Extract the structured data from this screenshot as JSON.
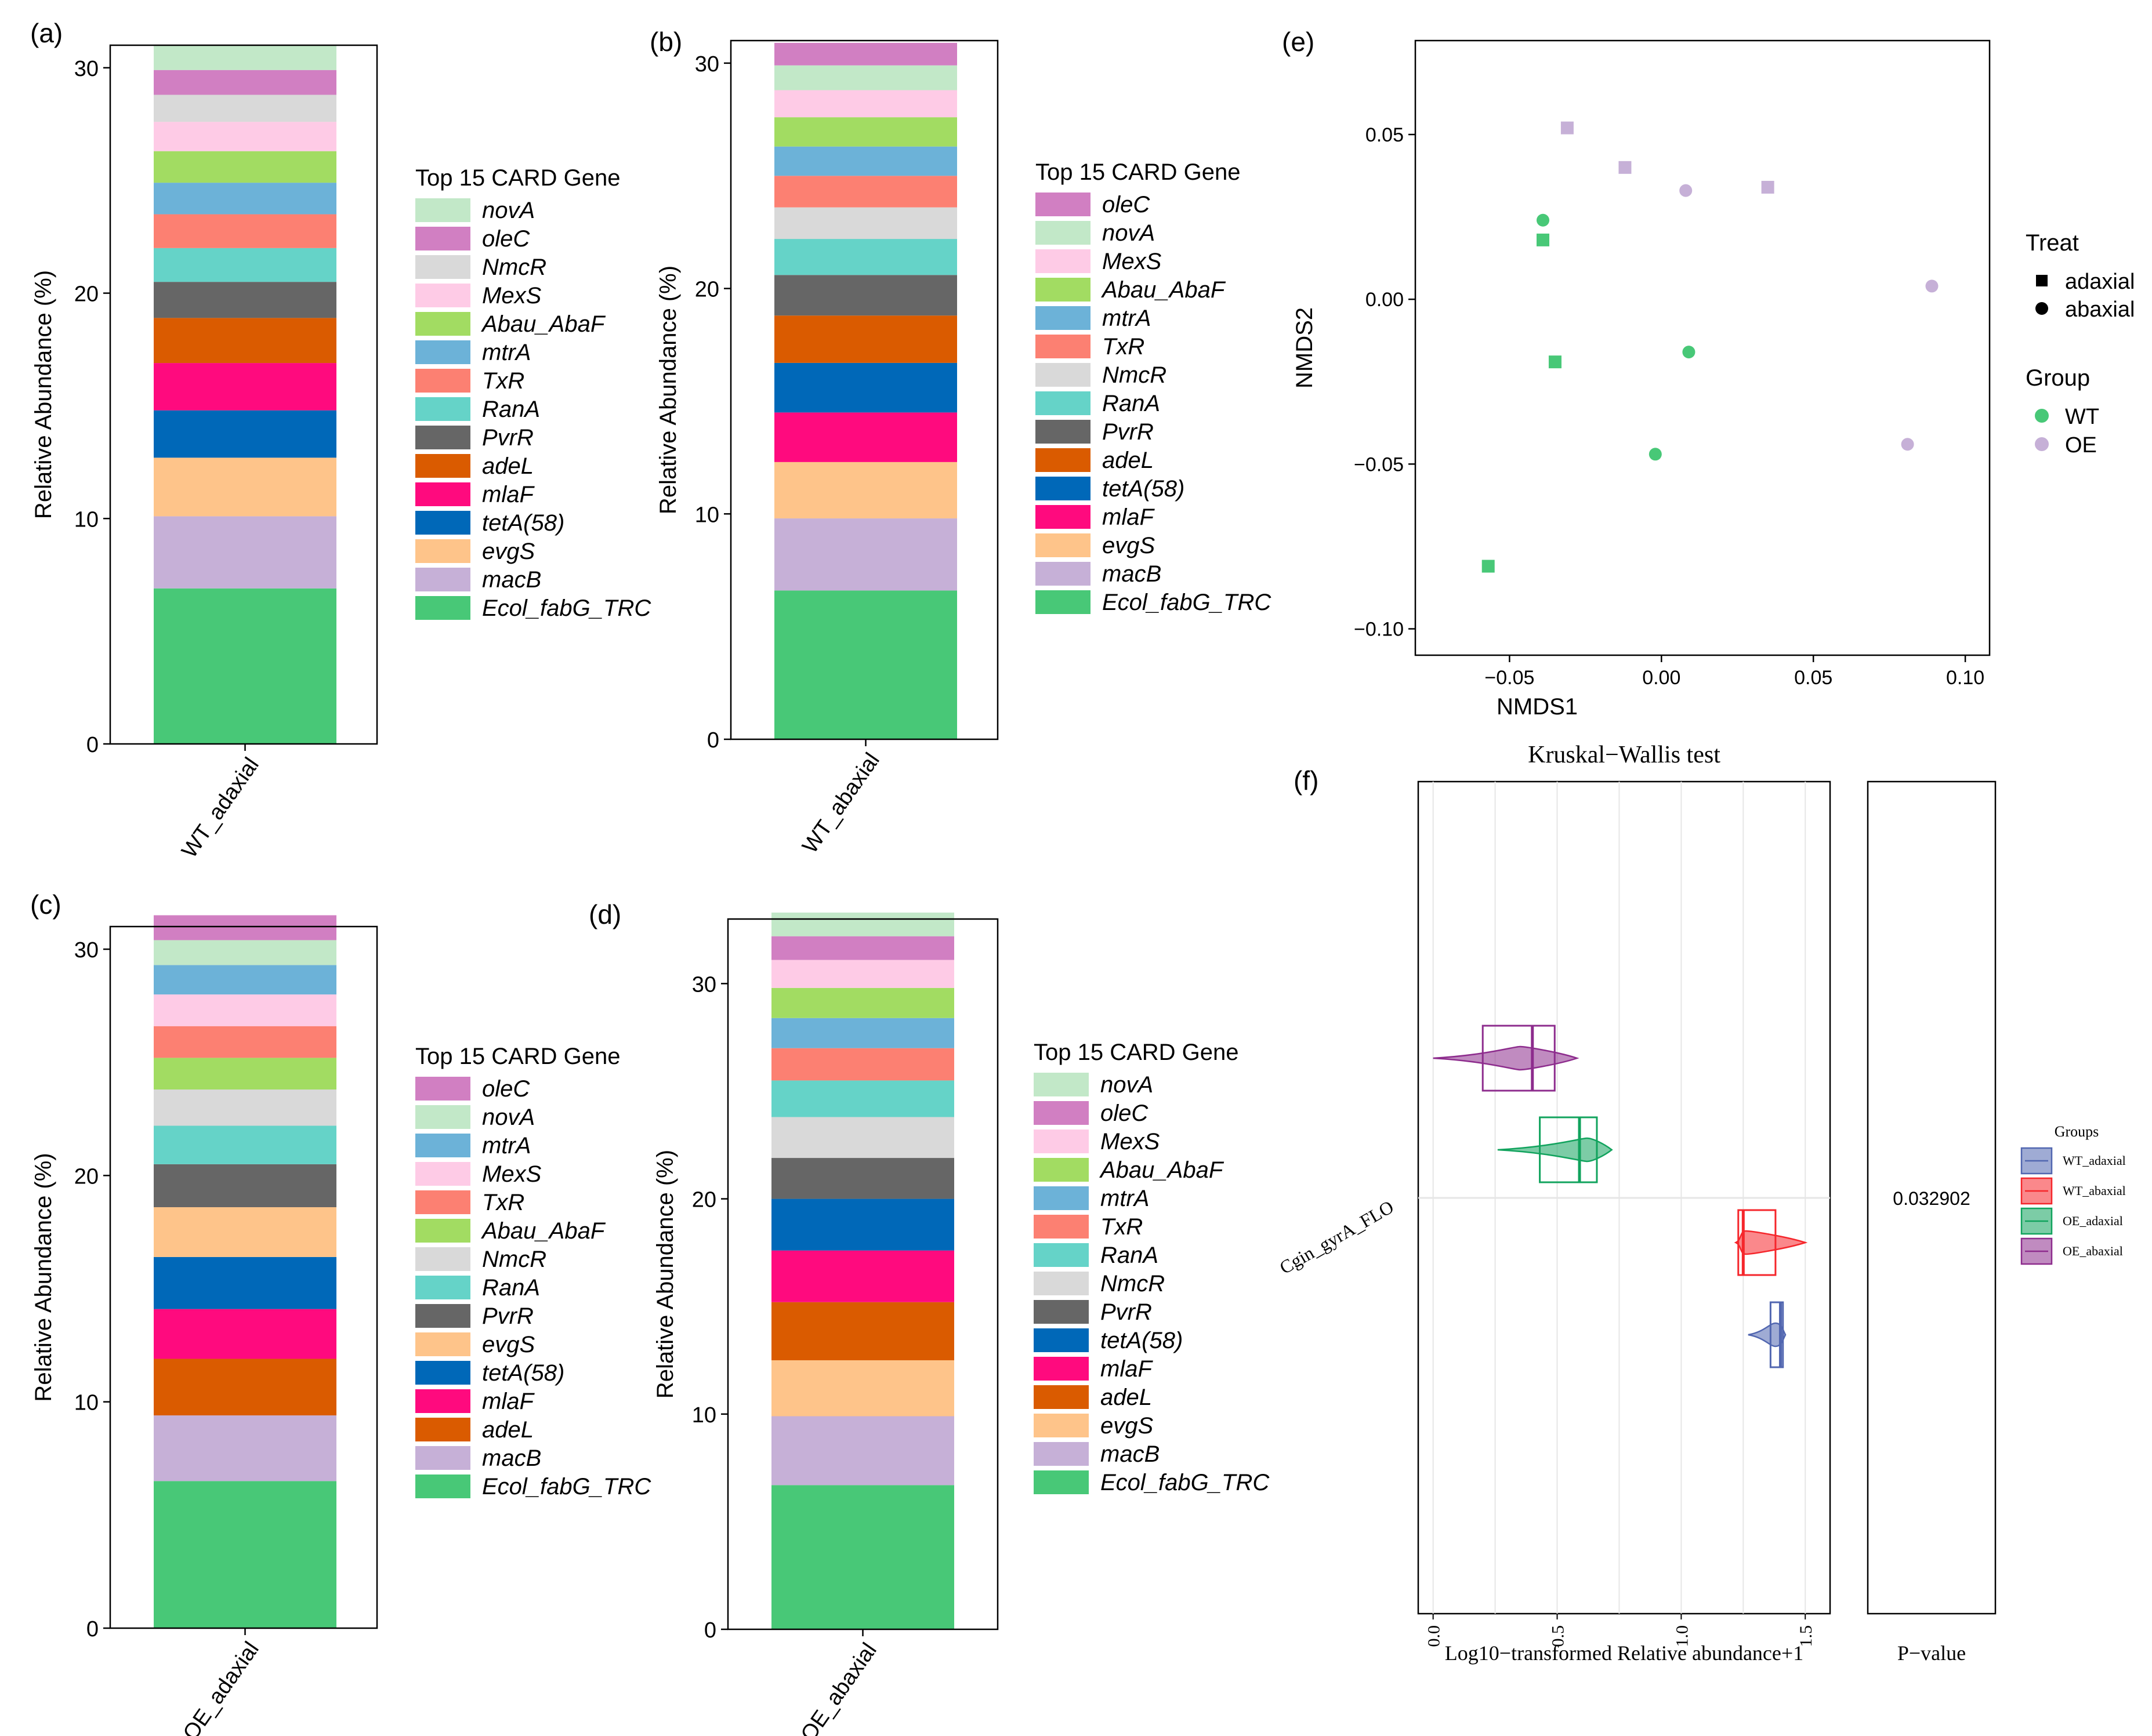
{
  "figure": {
    "colors": {
      "novA": "#c2e8c8",
      "oleC": "#d17fc2",
      "NmcR": "#d9d9d9",
      "MexS": "#fecbe6",
      "Abau_AbaF": "#a2dc62",
      "mtrA": "#6cb2d8",
      "TxR": "#fc8072",
      "RanA": "#65d3c8",
      "PvrR": "#666666",
      "adeL": "#da5b00",
      "mlaF": "#ff0a7e",
      "tetA(58)": "#0068b8",
      "evgS": "#fec48a",
      "macB": "#c6b0d7",
      "Ecol_fabG_TRC": "#48c877",
      "WT": "#48c877",
      "OE": "#c6b0d7",
      "WT_adaxial": "#5166b0",
      "WT_abaxial": "#f5262b",
      "OE_adaxial": "#11a35d",
      "OE_abaxial": "#8d2c8d"
    }
  },
  "chart_data": [
    {
      "panel": "(a)",
      "type": "bar",
      "stacked": true,
      "category": "WT_adaxial",
      "ylabel": "Relative Abundance (%)",
      "ylim": [
        0,
        31
      ],
      "yticks": [
        0,
        10,
        20,
        30
      ],
      "legend_title": "Top 15 CARD Gene",
      "legend": [
        "novA",
        "oleC",
        "NmcR",
        "MexS",
        "Abau_AbaF",
        "mtrA",
        "TxR",
        "RanA",
        "PvrR",
        "adeL",
        "mlaF",
        "tetA(58)",
        "evgS",
        "macB",
        "Ecol_fabG_TRC"
      ],
      "series": [
        {
          "name": "Ecol_fabG_TRC",
          "value": 6.9
        },
        {
          "name": "macB",
          "value": 3.2
        },
        {
          "name": "evgS",
          "value": 2.6
        },
        {
          "name": "tetA(58)",
          "value": 2.1
        },
        {
          "name": "mlaF",
          "value": 2.1
        },
        {
          "name": "adeL",
          "value": 2.0
        },
        {
          "name": "PvrR",
          "value": 1.6
        },
        {
          "name": "RanA",
          "value": 1.5
        },
        {
          "name": "TxR",
          "value": 1.5
        },
        {
          "name": "mtrA",
          "value": 1.4
        },
        {
          "name": "Abau_AbaF",
          "value": 1.4
        },
        {
          "name": "MexS",
          "value": 1.3
        },
        {
          "name": "NmcR",
          "value": 1.2
        },
        {
          "name": "oleC",
          "value": 1.1
        },
        {
          "name": "novA",
          "value": 1.1
        }
      ]
    },
    {
      "panel": "(b)",
      "type": "bar",
      "stacked": true,
      "category": "WT_abaxial",
      "ylabel": "Relative Abundance (%)",
      "ylim": [
        0,
        31
      ],
      "yticks": [
        0,
        10,
        20,
        30
      ],
      "legend_title": "Top 15 CARD Gene",
      "legend": [
        "oleC",
        "novA",
        "MexS",
        "Abau_AbaF",
        "mtrA",
        "TxR",
        "NmcR",
        "RanA",
        "PvrR",
        "adeL",
        "tetA(58)",
        "mlaF",
        "evgS",
        "macB",
        "Ecol_fabG_TRC"
      ],
      "series": [
        {
          "name": "Ecol_fabG_TRC",
          "value": 6.6
        },
        {
          "name": "macB",
          "value": 3.2
        },
        {
          "name": "evgS",
          "value": 2.5
        },
        {
          "name": "mlaF",
          "value": 2.2
        },
        {
          "name": "tetA(58)",
          "value": 2.2
        },
        {
          "name": "adeL",
          "value": 2.1
        },
        {
          "name": "PvrR",
          "value": 1.8
        },
        {
          "name": "RanA",
          "value": 1.6
        },
        {
          "name": "NmcR",
          "value": 1.4
        },
        {
          "name": "TxR",
          "value": 1.4
        },
        {
          "name": "mtrA",
          "value": 1.3
        },
        {
          "name": "Abau_AbaF",
          "value": 1.3
        },
        {
          "name": "MexS",
          "value": 1.2
        },
        {
          "name": "novA",
          "value": 1.1
        },
        {
          "name": "oleC",
          "value": 1.0
        }
      ]
    },
    {
      "panel": "(c)",
      "type": "bar",
      "stacked": true,
      "category": "OE_adaxial",
      "ylabel": "Relative Abundance (%)",
      "ylim": [
        0,
        31
      ],
      "yticks": [
        0,
        10,
        20,
        30
      ],
      "legend_title": "Top 15 CARD Gene",
      "legend": [
        "oleC",
        "novA",
        "mtrA",
        "MexS",
        "TxR",
        "Abau_AbaF",
        "NmcR",
        "RanA",
        "PvrR",
        "evgS",
        "tetA(58)",
        "mlaF",
        "adeL",
        "macB",
        "Ecol_fabG_TRC"
      ],
      "series": [
        {
          "name": "Ecol_fabG_TRC",
          "value": 6.5
        },
        {
          "name": "macB",
          "value": 2.9
        },
        {
          "name": "adeL",
          "value": 2.5
        },
        {
          "name": "mlaF",
          "value": 2.2
        },
        {
          "name": "tetA(58)",
          "value": 2.3
        },
        {
          "name": "evgS",
          "value": 2.2
        },
        {
          "name": "PvrR",
          "value": 1.9
        },
        {
          "name": "RanA",
          "value": 1.7
        },
        {
          "name": "NmcR",
          "value": 1.6
        },
        {
          "name": "Abau_AbaF",
          "value": 1.4
        },
        {
          "name": "TxR",
          "value": 1.4
        },
        {
          "name": "MexS",
          "value": 1.4
        },
        {
          "name": "mtrA",
          "value": 1.3
        },
        {
          "name": "novA",
          "value": 1.1
        },
        {
          "name": "oleC",
          "value": 1.1
        }
      ]
    },
    {
      "panel": "(d)",
      "type": "bar",
      "stacked": true,
      "category": "OE_abaxial",
      "ylabel": "Relative Abundance (%)",
      "ylim": [
        0,
        33
      ],
      "yticks": [
        0,
        10,
        20,
        30
      ],
      "legend_title": "Top 15 CARD Gene",
      "legend": [
        "novA",
        "oleC",
        "MexS",
        "Abau_AbaF",
        "mtrA",
        "TxR",
        "RanA",
        "NmcR",
        "PvrR",
        "tetA(58)",
        "mlaF",
        "adeL",
        "evgS",
        "macB",
        "Ecol_fabG_TRC"
      ],
      "series": [
        {
          "name": "Ecol_fabG_TRC",
          "value": 6.7
        },
        {
          "name": "macB",
          "value": 3.2
        },
        {
          "name": "evgS",
          "value": 2.6
        },
        {
          "name": "adeL",
          "value": 2.7
        },
        {
          "name": "mlaF",
          "value": 2.4
        },
        {
          "name": "tetA(58)",
          "value": 2.4
        },
        {
          "name": "PvrR",
          "value": 1.9
        },
        {
          "name": "NmcR",
          "value": 1.9
        },
        {
          "name": "RanA",
          "value": 1.7
        },
        {
          "name": "TxR",
          "value": 1.5
        },
        {
          "name": "mtrA",
          "value": 1.4
        },
        {
          "name": "Abau_AbaF",
          "value": 1.4
        },
        {
          "name": "MexS",
          "value": 1.3
        },
        {
          "name": "oleC",
          "value": 1.1
        },
        {
          "name": "novA",
          "value": 1.1
        }
      ]
    },
    {
      "panel": "(e)",
      "type": "scatter",
      "xlabel": "NMDS1",
      "ylabel": "NMDS2",
      "xlim": [
        -0.081,
        0.108
      ],
      "ylim": [
        -0.108,
        0.0785
      ],
      "xticks": [
        -0.05,
        0.0,
        0.05,
        0.1
      ],
      "xtick_labels": [
        "−0.05",
        "0.00",
        "0.05",
        "0.10"
      ],
      "yticks": [
        -0.1,
        -0.05,
        0.0,
        0.05
      ],
      "ytick_labels": [
        "−0.10",
        "−0.05",
        "0.00",
        "0.05"
      ],
      "legend_treat_title": "Treat",
      "legend_treat": [
        "adaxial",
        "abaxial"
      ],
      "legend_group_title": "Group",
      "legend_group": [
        "WT",
        "OE"
      ],
      "points": [
        {
          "x": -0.031,
          "y": 0.052,
          "group": "OE",
          "treat": "adaxial"
        },
        {
          "x": -0.012,
          "y": 0.04,
          "group": "OE",
          "treat": "adaxial"
        },
        {
          "x": 0.035,
          "y": 0.034,
          "group": "OE",
          "treat": "adaxial"
        },
        {
          "x": 0.008,
          "y": 0.033,
          "group": "OE",
          "treat": "abaxial"
        },
        {
          "x": 0.089,
          "y": 0.004,
          "group": "OE",
          "treat": "abaxial"
        },
        {
          "x": 0.081,
          "y": -0.044,
          "group": "OE",
          "treat": "abaxial"
        },
        {
          "x": -0.039,
          "y": 0.024,
          "group": "WT",
          "treat": "abaxial"
        },
        {
          "x": -0.039,
          "y": 0.018,
          "group": "WT",
          "treat": "adaxial"
        },
        {
          "x": -0.035,
          "y": -0.019,
          "group": "WT",
          "treat": "adaxial"
        },
        {
          "x": 0.009,
          "y": -0.016,
          "group": "WT",
          "treat": "abaxial"
        },
        {
          "x": -0.002,
          "y": -0.047,
          "group": "WT",
          "treat": "abaxial"
        },
        {
          "x": -0.057,
          "y": -0.081,
          "group": "WT",
          "treat": "adaxial"
        }
      ]
    },
    {
      "panel": "(f)",
      "type": "box_violin",
      "title": "Kruskal−Wallis test",
      "gene": "Cgin_gyrA_FLO",
      "xlabel": "Log10−transformed Relative abundance+1",
      "xlim": [
        -0.06,
        1.6
      ],
      "xticks": [
        0.0,
        0.5,
        1.0,
        1.5
      ],
      "xtick_labels": [
        "0.0",
        "0.5",
        "1.0",
        "1.5"
      ],
      "pvalue_label": "P−value",
      "pvalue": "0.032902",
      "legend_title": "Groups",
      "legend": [
        "WT_adaxial",
        "WT_abaxial",
        "OE_adaxial",
        "OE_abaxial"
      ],
      "groups": [
        {
          "name": "OE_abaxial",
          "min": 0.0,
          "q1": 0.2,
          "median": 0.4,
          "q3": 0.49,
          "max": 0.58,
          "peak": 0.35
        },
        {
          "name": "OE_adaxial",
          "min": 0.26,
          "q1": 0.43,
          "median": 0.59,
          "q3": 0.66,
          "max": 0.72,
          "peak": 0.62
        },
        {
          "name": "WT_abaxial",
          "min": 1.22,
          "q1": 1.23,
          "median": 1.25,
          "q3": 1.38,
          "max": 1.5,
          "peak": 1.26
        },
        {
          "name": "WT_adaxial",
          "min": 1.27,
          "q1": 1.36,
          "median": 1.4,
          "q3": 1.41,
          "max": 1.42,
          "peak": 1.38
        }
      ]
    }
  ]
}
